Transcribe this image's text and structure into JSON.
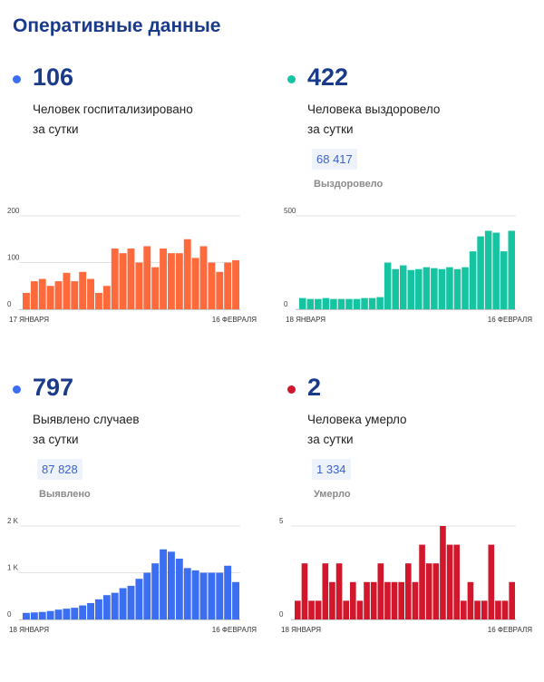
{
  "header": {
    "title": "Оперативные данные"
  },
  "panels": [
    {
      "accent": "#3b6ef0",
      "value": "106",
      "line1": "Человек госпитализировано",
      "line2": "за сутки",
      "badge": "",
      "badge_label": ""
    },
    {
      "accent": "#16c4a2",
      "value": "422",
      "line1": "Человека выздоровело",
      "line2": "за сутки",
      "badge": "68 417",
      "badge_label": "Выздоровело"
    },
    {
      "accent": "#3b6ef0",
      "value": "797",
      "line1": "Выявлено случаев",
      "line2": "за сутки",
      "badge": "87 828",
      "badge_label": "Выявлено"
    },
    {
      "accent": "#d2162b",
      "value": "2",
      "line1": "Человека умерло",
      "line2": "за сутки",
      "badge": "1 334",
      "badge_label": "Умерло"
    }
  ],
  "chart_data": [
    {
      "type": "bar",
      "color": "#ff6a3d",
      "ylim": [
        0,
        200
      ],
      "yticks": [
        {
          "v": 0,
          "label": "0"
        },
        {
          "v": 100,
          "label": "100"
        },
        {
          "v": 200,
          "label": "200"
        }
      ],
      "x_start": "17 ЯНВАРЯ",
      "x_end": "16 ФЕВРАЛЯ",
      "values": [
        35,
        60,
        65,
        50,
        60,
        78,
        60,
        80,
        65,
        35,
        50,
        130,
        120,
        130,
        100,
        135,
        90,
        130,
        120,
        120,
        150,
        110,
        135,
        100,
        80,
        100,
        105
      ]
    },
    {
      "type": "bar",
      "color": "#16c4a2",
      "ylim": [
        0,
        500
      ],
      "yticks": [
        {
          "v": 0,
          "label": "0"
        },
        {
          "v": 500,
          "label": "500"
        }
      ],
      "x_start": "18 ЯНВАРЯ",
      "x_end": "16 ФЕВРАЛЯ",
      "values": [
        60,
        55,
        55,
        60,
        55,
        55,
        55,
        55,
        60,
        60,
        65,
        250,
        215,
        235,
        210,
        215,
        225,
        220,
        215,
        225,
        215,
        225,
        310,
        390,
        420,
        410,
        310,
        420
      ]
    },
    {
      "type": "bar",
      "color": "#3b6ef0",
      "ylim": [
        0,
        2000
      ],
      "yticks": [
        {
          "v": 0,
          "label": "0"
        },
        {
          "v": 1000,
          "label": "1 K"
        },
        {
          "v": 2000,
          "label": "2 K"
        }
      ],
      "x_start": "18 ЯНВАРЯ",
      "x_end": "16 ФЕВРАЛЯ",
      "values": [
        140,
        150,
        160,
        180,
        210,
        230,
        250,
        300,
        350,
        430,
        520,
        570,
        670,
        720,
        870,
        1000,
        1200,
        1500,
        1450,
        1300,
        1100,
        1050,
        1000,
        1000,
        1000,
        1150,
        800
      ]
    },
    {
      "type": "bar",
      "color": "#d2162b",
      "ylim": [
        0,
        5
      ],
      "yticks": [
        {
          "v": 0,
          "label": "0"
        },
        {
          "v": 5,
          "label": "5"
        }
      ],
      "x_start": "18 ЯНВАРЯ",
      "x_end": "16 ФЕВРАЛЯ",
      "values": [
        1,
        3,
        1,
        1,
        3,
        2,
        3,
        1,
        2,
        1,
        2,
        2,
        3,
        2,
        2,
        2,
        3,
        2,
        4,
        3,
        3,
        5,
        4,
        4,
        1,
        2,
        1,
        1,
        4,
        1,
        1,
        2
      ]
    }
  ]
}
